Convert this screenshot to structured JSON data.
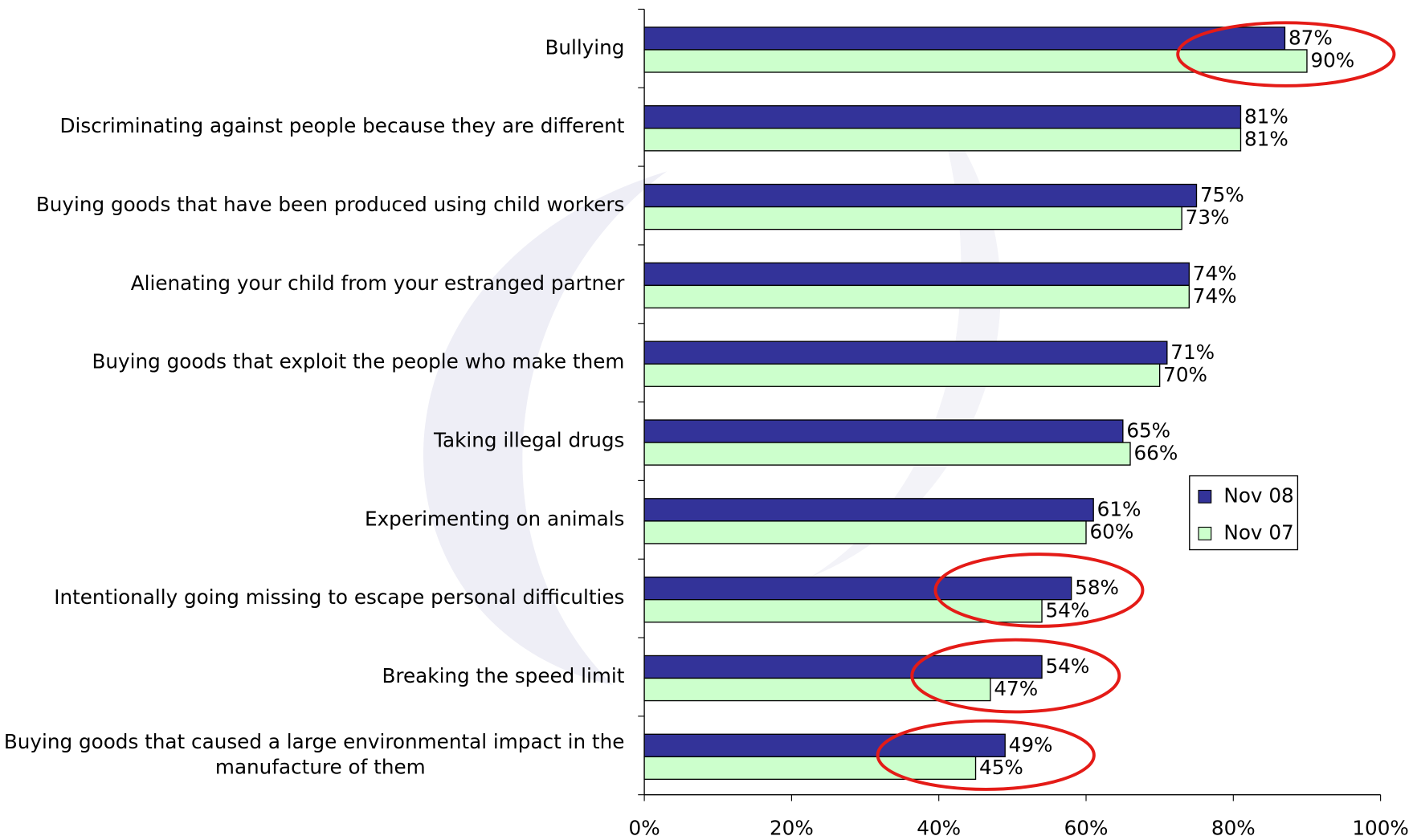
{
  "chart_data": {
    "type": "bar",
    "orientation": "horizontal",
    "categories": [
      "Bullying",
      "Discriminating against people because they are different",
      "Buying goods that have been produced using child workers",
      "Alienating your child from your estranged partner",
      "Buying goods that exploit the people who make them",
      "Taking illegal drugs",
      "Experimenting on animals",
      "Intentionally going missing to escape personal difficulties",
      "Breaking the speed limit",
      "Buying goods that caused a large environmental impact in the manufacture of them"
    ],
    "series": [
      {
        "name": "Nov 08",
        "color": "#333399",
        "values": [
          87,
          81,
          75,
          74,
          71,
          65,
          61,
          58,
          54,
          49
        ],
        "value_labels": [
          "87%",
          "81%",
          "75%",
          "74%",
          "71%",
          "65%",
          "61%",
          "58%",
          "54%",
          "49%"
        ]
      },
      {
        "name": "Nov 07",
        "color": "#ccffcc",
        "values": [
          90,
          81,
          73,
          74,
          70,
          66,
          60,
          54,
          47,
          45
        ],
        "value_labels": [
          "90%",
          "81%",
          "73%",
          "74%",
          "70%",
          "66%",
          "60%",
          "54%",
          "47%",
          "45%"
        ]
      }
    ],
    "xlim": [
      0,
      100
    ],
    "xticks": [
      {
        "value": 0,
        "label": "0%"
      },
      {
        "value": 20,
        "label": "20%"
      },
      {
        "value": 40,
        "label": "40%"
      },
      {
        "value": 60,
        "label": "60%"
      },
      {
        "value": 80,
        "label": "80%"
      },
      {
        "value": 100,
        "label": "100%"
      }
    ],
    "legend": "right"
  }
}
